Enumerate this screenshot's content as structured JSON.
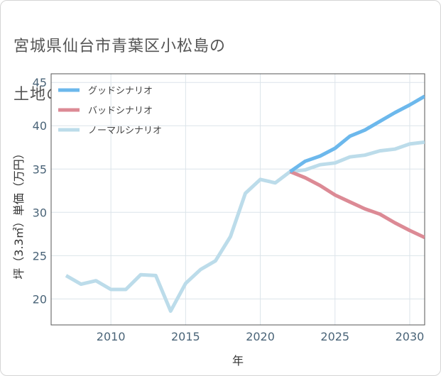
{
  "title_lines": [
    "宮城県仙台市青葉区小松島の",
    "土地の価格推移"
  ],
  "chart_data": {
    "type": "line",
    "xlabel": "年",
    "ylabel": "坪（3.3㎡）単価（万円）",
    "xlim": [
      2006,
      2031
    ],
    "ylim": [
      17,
      46
    ],
    "x_ticks": [
      2010,
      2015,
      2020,
      2025,
      2030
    ],
    "y_ticks": [
      20,
      25,
      30,
      35,
      40,
      45
    ],
    "grid": true,
    "legend_position": "top-left",
    "series": [
      {
        "name": "グッドシナリオ",
        "color": "#6cb8ec",
        "x": [
          2022,
          2023,
          2024,
          2025,
          2026,
          2027,
          2028,
          2029,
          2030,
          2031
        ],
        "y": [
          34.7,
          35.9,
          36.5,
          37.4,
          38.8,
          39.5,
          40.5,
          41.5,
          42.4,
          43.4
        ]
      },
      {
        "name": "バッドシナリオ",
        "color": "#dc8a95",
        "x": [
          2022,
          2023,
          2024,
          2025,
          2026,
          2027,
          2028,
          2029,
          2030,
          2031
        ],
        "y": [
          34.7,
          34.0,
          33.1,
          32.0,
          31.2,
          30.4,
          29.8,
          28.8,
          27.9,
          27.1
        ]
      },
      {
        "name": "ノーマルシナリオ",
        "color": "#bcdcea",
        "x": [
          2007,
          2008,
          2009,
          2010,
          2011,
          2012,
          2013,
          2014,
          2015,
          2016,
          2017,
          2018,
          2019,
          2020,
          2021,
          2022,
          2023,
          2024,
          2025,
          2026,
          2027,
          2028,
          2029,
          2030,
          2031
        ],
        "y": [
          22.7,
          21.7,
          22.1,
          21.1,
          21.1,
          22.8,
          22.7,
          18.6,
          21.8,
          23.4,
          24.4,
          27.2,
          32.2,
          33.8,
          33.4,
          34.7,
          34.9,
          35.5,
          35.7,
          36.4,
          36.6,
          37.1,
          37.3,
          37.9,
          38.1
        ]
      }
    ]
  }
}
